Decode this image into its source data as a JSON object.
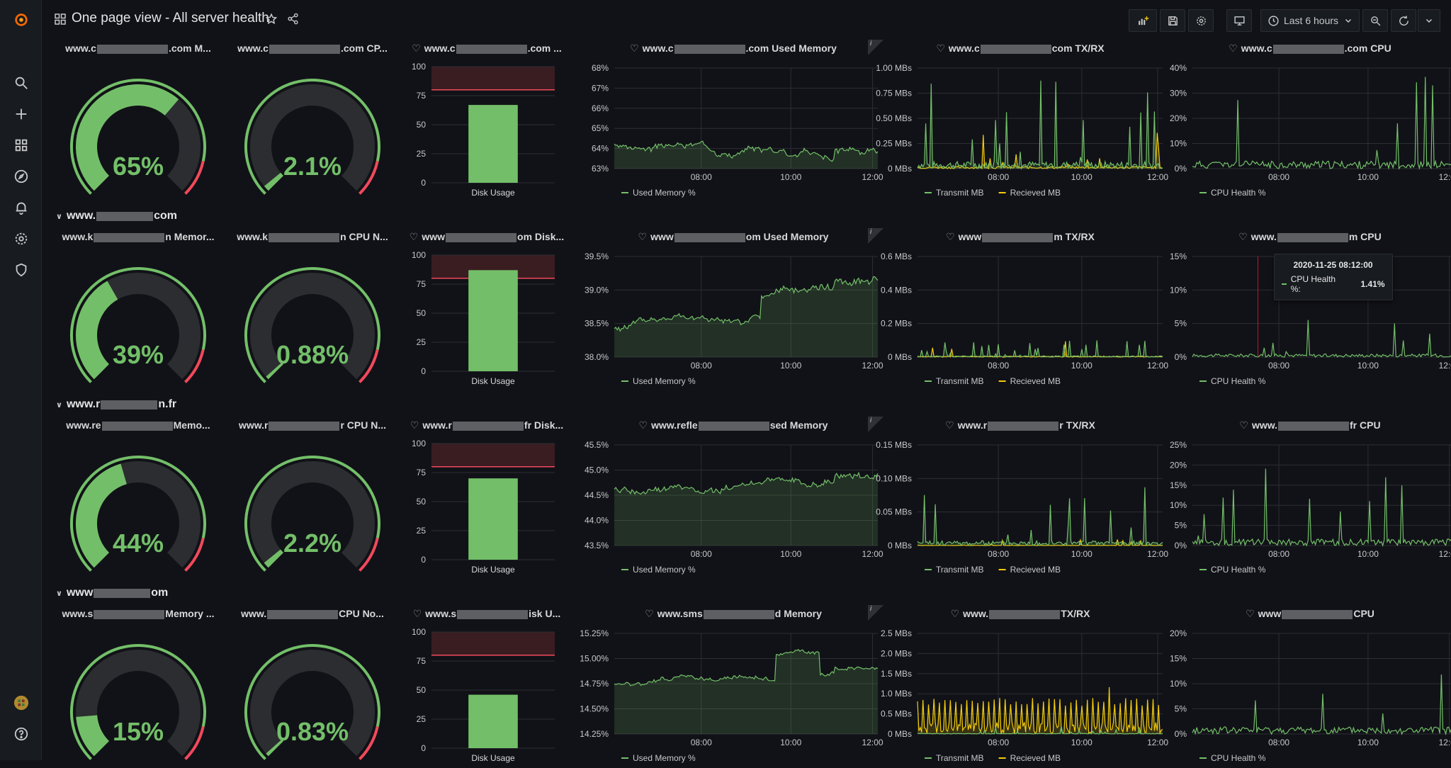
{
  "dashboard": {
    "title": "One page view - All server health",
    "time_range": "Last 6 hours"
  },
  "colors": {
    "green": "#73bf69",
    "yellow": "#f2cc0c",
    "red": "#f2495c",
    "gauge_track": "#2c2d30"
  },
  "time_ticks": [
    "08:00",
    "10:00",
    "12:00"
  ],
  "rows": [
    {
      "header_left": "www.",
      "header_right": "com",
      "memory_title": {
        "pre": "www.c",
        "post": ".com M..."
      },
      "cpu_title": {
        "pre": "www.c",
        "post": ".com CP..."
      },
      "disk_title": {
        "pre": "www.c",
        "post": ".com ..."
      },
      "usedmem_title": {
        "pre": "www.c",
        "post": ".com Used Memory"
      },
      "txrx_title": {
        "pre": "www.c",
        "post": "com TX/RX"
      },
      "cpuhealth_title": {
        "pre": "www.c",
        "post": ".com CPU"
      },
      "memory_gauge": {
        "value": 65,
        "text": "65%"
      },
      "cpu_gauge": {
        "value": 2.1,
        "text": "2.1%"
      },
      "disk": {
        "value": 67,
        "threshold": 80,
        "yticks": [
          "100",
          "75",
          "50",
          "25",
          "0"
        ],
        "label": "Disk Usage"
      },
      "usedmem": {
        "yticks": [
          "68%",
          "67%",
          "66%",
          "65%",
          "64%",
          "63%"
        ],
        "ymin": 63,
        "ymax": 68,
        "base": 64.2,
        "noise": 0.35,
        "seed": 3,
        "legend": "Used Memory %"
      },
      "txrx": {
        "yticks": [
          "1.00 MBs",
          "0.75 MBs",
          "0.50 MBs",
          "0.25 MBs",
          "0 MBs"
        ],
        "ymax": 1.0,
        "tx_scale": 0.9,
        "rx_scale": 0.45,
        "seed": 7,
        "legend_tx": "Transmit MB",
        "legend_rx": "Recieved MB"
      },
      "cpuhealth": {
        "yticks": [
          "40%",
          "30%",
          "20%",
          "10%",
          "0%"
        ],
        "ymax": 40,
        "scale": 38,
        "seed": 11,
        "legend": "CPU Health %"
      }
    },
    {
      "header_left": "www.",
      "header_right": "com",
      "memory_title": {
        "pre": "www.k",
        "post": "n Memor..."
      },
      "cpu_title": {
        "pre": "www.k",
        "post": "n CPU N..."
      },
      "disk_title": {
        "pre": "www",
        "post": "om Disk..."
      },
      "usedmem_title": {
        "pre": "www",
        "post": "om Used Memory"
      },
      "txrx_title": {
        "pre": "www",
        "post": "m TX/RX"
      },
      "cpuhealth_title": {
        "pre": "www.",
        "post": "m CPU"
      },
      "memory_gauge": {
        "value": 39,
        "text": "39%"
      },
      "cpu_gauge": {
        "value": 0.88,
        "text": "0.88%"
      },
      "disk": {
        "value": 87,
        "threshold": 80,
        "yticks": [
          "100",
          "75",
          "50",
          "25",
          "0"
        ],
        "label": "Disk Usage"
      },
      "usedmem": {
        "yticks": [
          "39.5%",
          "39.0%",
          "38.5%",
          "38.0%"
        ],
        "ymin": 38.0,
        "ymax": 39.5,
        "base": 38.4,
        "noise": 0.12,
        "seed": 5,
        "legend": "Used Memory %"
      },
      "txrx": {
        "yticks": [
          "0.6 MBs",
          "0.4 MBs",
          "0.2 MBs",
          "0 MBs"
        ],
        "ymax": 0.6,
        "tx_scale": 0.1,
        "rx_scale": 0.1,
        "seed": 13,
        "legend_tx": "Transmit MB",
        "legend_rx": "Recieved MB"
      },
      "cpuhealth": {
        "yticks": [
          "15%",
          "10%",
          "5%",
          "0%"
        ],
        "ymax": 15,
        "scale": 6,
        "seed": 17,
        "legend": "CPU Health %"
      },
      "tooltip": {
        "time": "2020-11-25 08:12:00",
        "series": "CPU Health %:",
        "value": "1.41%"
      }
    },
    {
      "header_left": "www.r",
      "header_right": "n.fr",
      "memory_title": {
        "pre": "www.re",
        "post": "Memo..."
      },
      "cpu_title": {
        "pre": "www.r",
        "post": "r CPU N..."
      },
      "disk_title": {
        "pre": "www.r",
        "post": "fr Disk..."
      },
      "usedmem_title": {
        "pre": "www.refle",
        "post": "sed Memory"
      },
      "txrx_title": {
        "pre": "www.r",
        "post": "r TX/RX"
      },
      "cpuhealth_title": {
        "pre": "www.",
        "post": "fr CPU"
      },
      "memory_gauge": {
        "value": 44,
        "text": "44%"
      },
      "cpu_gauge": {
        "value": 2.2,
        "text": "2.2%"
      },
      "disk": {
        "value": 70,
        "threshold": 80,
        "yticks": [
          "100",
          "75",
          "50",
          "25",
          "0"
        ],
        "label": "Disk Usage"
      },
      "usedmem": {
        "yticks": [
          "45.5%",
          "45.0%",
          "44.5%",
          "44.0%",
          "43.5%"
        ],
        "ymin": 43.5,
        "ymax": 45.5,
        "base": 44.6,
        "noise": 0.15,
        "seed": 19,
        "legend": "Used Memory %"
      },
      "txrx": {
        "yticks": [
          "0.15 MBs",
          "0.10 MBs",
          "0.05 MBs",
          "0 MBs"
        ],
        "ymax": 0.15,
        "tx_scale": 0.09,
        "rx_scale": 0.01,
        "seed": 23,
        "legend_tx": "Transmit MB",
        "legend_rx": "Recieved MB"
      },
      "cpuhealth": {
        "yticks": [
          "25%",
          "20%",
          "15%",
          "10%",
          "5%",
          "0%"
        ],
        "ymax": 25,
        "scale": 20,
        "seed": 29,
        "legend": "CPU Health %"
      }
    },
    {
      "header_left": "www",
      "header_right": "om",
      "memory_title": {
        "pre": "www.s",
        "post": "Memory ..."
      },
      "cpu_title": {
        "pre": "www.",
        "post": "CPU No..."
      },
      "disk_title": {
        "pre": "www.s",
        "post": "isk U..."
      },
      "usedmem_title": {
        "pre": "www.sms",
        "post": "d Memory"
      },
      "txrx_title": {
        "pre": "www.",
        "post": "TX/RX"
      },
      "cpuhealth_title": {
        "pre": "www",
        "post": "CPU"
      },
      "memory_gauge": {
        "value": 15,
        "text": "15%"
      },
      "cpu_gauge": {
        "value": 0.83,
        "text": "0.83%"
      },
      "disk": {
        "value": 46,
        "threshold": 80,
        "yticks": [
          "100",
          "75",
          "50",
          "25",
          "0"
        ],
        "label": "Disk Usage"
      },
      "usedmem": {
        "yticks": [
          "15.25%",
          "15.00%",
          "14.75%",
          "14.50%",
          "14.25%"
        ],
        "ymin": 14.25,
        "ymax": 15.25,
        "base": 14.75,
        "noise": 0.05,
        "seed": 31,
        "legend": "Used Memory %"
      },
      "txrx": {
        "yticks": [
          "2.5 MBs",
          "2.0 MBs",
          "1.5 MBs",
          "1.0 MBs",
          "0.5 MBs",
          "0 MBs"
        ],
        "ymax": 2.5,
        "tx_scale": 0.2,
        "rx_scale": 2.0,
        "seed": 37,
        "legend_tx": "Transmit MB",
        "legend_rx": "Recieved MB"
      },
      "cpuhealth": {
        "yticks": [
          "20%",
          "15%",
          "10%",
          "5%",
          "0%"
        ],
        "ymax": 20,
        "scale": 18,
        "seed": 41,
        "legend": "CPU Health %"
      }
    }
  ]
}
